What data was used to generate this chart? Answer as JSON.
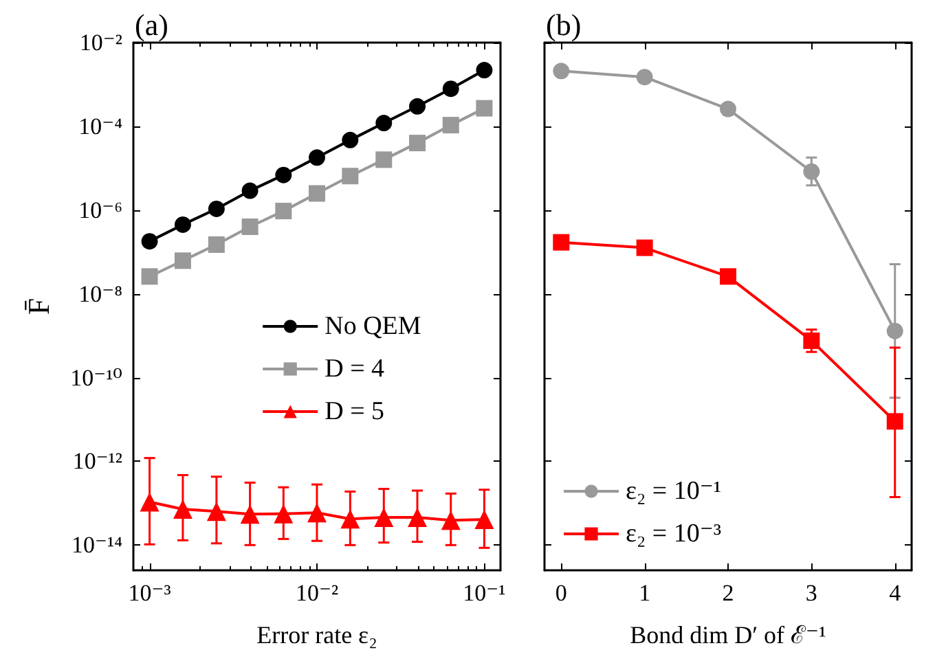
{
  "chart_data": [
    {
      "type": "line",
      "title": "(a)",
      "xlabel": "Error rate ε₂",
      "ylabel": "F̄",
      "log": "xy",
      "grid": false,
      "legend": "center",
      "xlim": [
        0.0008,
        0.125
      ],
      "xticks": [
        {
          "value": 0.001,
          "label": "10⁻³"
        },
        {
          "value": 0.01,
          "label": "10⁻²"
        },
        {
          "value": 0.1,
          "label": "10⁻¹"
        }
      ],
      "ylim": [
        2.5e-15,
        0.01
      ],
      "yticks": [
        {
          "value": 1e-14,
          "label": "10⁻¹⁴"
        },
        {
          "value": 1e-12,
          "label": "10⁻¹²"
        },
        {
          "value": 1e-10,
          "label": "10⁻¹⁰"
        },
        {
          "value": 1e-08,
          "label": "10⁻⁸"
        },
        {
          "value": 1e-06,
          "label": "10⁻⁶"
        },
        {
          "value": 0.0001,
          "label": "10⁻⁴"
        },
        {
          "value": 0.01,
          "label": "10⁻²"
        }
      ],
      "x": [
        0.001,
        0.00158,
        0.00251,
        0.00398,
        0.00631,
        0.01,
        0.0158,
        0.0251,
        0.0398,
        0.0631,
        0.1
      ],
      "series": [
        {
          "name": "No QEM",
          "color": "#000000",
          "marker": "circle",
          "values": [
            1.8e-07,
            4.5e-07,
            1.07e-06,
            2.9e-06,
            6.9e-06,
            1.8e-05,
            4.7e-05,
            0.00012,
            0.0003,
            0.00079,
            0.0022
          ]
        },
        {
          "name": "D = 4",
          "color": "#999999",
          "marker": "square",
          "values": [
            2.6e-08,
            6.2e-08,
            1.5e-07,
            4e-07,
            9.5e-07,
            2.5e-06,
            6.5e-06,
            1.6e-05,
            4e-05,
            0.000107,
            0.00027
          ]
        },
        {
          "name": "D = 5",
          "color": "#ff0000",
          "marker": "triangle",
          "values": [
            1.07e-13,
            7.2e-14,
            6.4e-14,
            5.5e-14,
            5.6e-14,
            5.9e-14,
            4.2e-14,
            4.6e-14,
            4.6e-14,
            3.9e-14,
            4.1e-14
          ],
          "errors": [
            [
              1.04e-14,
              1.2e-12
            ],
            [
              1.3e-14,
              4.7e-13
            ],
            [
              1.1e-14,
              4.3e-13
            ],
            [
              1e-14,
              3.1e-13
            ],
            [
              1.4e-14,
              2.4e-13
            ],
            [
              1.26e-14,
              2.8e-13
            ],
            [
              1e-14,
              1.9e-13
            ],
            [
              1.15e-14,
              2.2e-13
            ],
            [
              1.2e-14,
              2e-13
            ],
            [
              1e-14,
              1.7e-13
            ],
            [
              8.6e-15,
              2.1e-13
            ]
          ]
        }
      ]
    },
    {
      "type": "line",
      "title": "(b)",
      "xlabel": "Bond dim D′ of ℰ⁻¹",
      "log": "y",
      "grid": false,
      "legend": "bottom left",
      "tick_labels": "x",
      "xlim": [
        -0.2,
        4.2
      ],
      "xticks": [
        0,
        1,
        2,
        3,
        4
      ],
      "ylim": [
        2.5e-15,
        0.01
      ],
      "yticks": [
        {
          "value": 1e-14,
          "label": null
        },
        {
          "value": 1e-12,
          "label": null
        },
        {
          "value": 1e-10,
          "label": null
        },
        {
          "value": 1e-08,
          "label": null
        },
        {
          "value": 1e-06,
          "label": null
        },
        {
          "value": 0.0001,
          "label": null
        },
        {
          "value": 0.01,
          "label": null
        }
      ],
      "x": [
        0,
        1,
        2,
        3,
        4
      ],
      "series": [
        {
          "name": "ε₂ = 10⁻¹",
          "color": "#999999",
          "marker": "circle",
          "values": [
            0.0021,
            0.0015,
            0.00026,
            8.3e-06,
            1.3e-09
          ],
          "errors": [
            null,
            null,
            [
              0.00019,
              0.00033
            ],
            [
              3.9e-06,
              1.8e-05
            ],
            [
              3.3e-11,
              5.1e-08
            ]
          ]
        },
        {
          "name": "ε₂ = 10⁻³",
          "color": "#ff0000",
          "marker": "square",
          "values": [
            1.7e-07,
            1.26e-07,
            2.6e-08,
            7.6e-10,
            9e-12
          ],
          "errors": [
            null,
            null,
            null,
            [
              4.1e-10,
              1.4e-09
            ],
            [
              1.4e-13,
              5.2e-10
            ]
          ]
        }
      ]
    }
  ]
}
